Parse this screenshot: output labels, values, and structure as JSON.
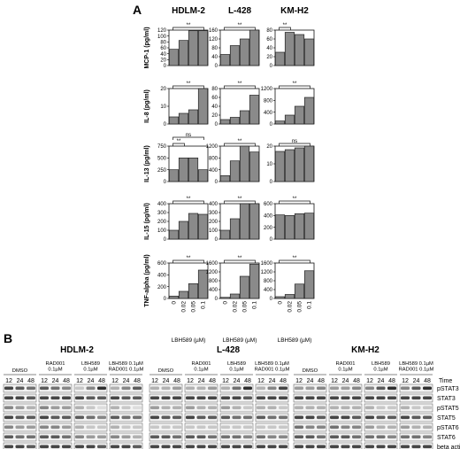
{
  "panel_a": {
    "label": "A",
    "cell_lines": [
      "HDLM-2",
      "L-428",
      "KM-H2"
    ],
    "x_label": "LBH589 (µM)",
    "doses": [
      "0",
      "0.02",
      "0.05",
      "0.1"
    ],
    "sig": "**",
    "ns": "ns"
  },
  "chart_data": [
    {
      "type": "bar",
      "cell_line": "HDLM-2",
      "ylabel": "MCP-1 (pg/ml)",
      "categories": [
        "0",
        "0.02",
        "0.05",
        "0.1"
      ],
      "values": [
        55,
        85,
        118,
        118
      ],
      "ylim": [
        0,
        120
      ],
      "yticks": [
        "0",
        "20",
        "40",
        "60",
        "80",
        "100",
        "120"
      ],
      "brackets": [
        {
          "label": "**",
          "from": 0,
          "to": 3
        }
      ]
    },
    {
      "type": "bar",
      "cell_line": "L-428",
      "ylabel": "",
      "categories": [
        "0",
        "0.02",
        "0.05",
        "0.1"
      ],
      "values": [
        50,
        90,
        120,
        160
      ],
      "ylim": [
        0,
        160
      ],
      "yticks": [
        "0",
        "40",
        "80",
        "120",
        "160"
      ],
      "brackets": [
        {
          "label": "**",
          "from": 0,
          "to": 3
        }
      ]
    },
    {
      "type": "bar",
      "cell_line": "KM-H2",
      "ylabel": "",
      "categories": [
        "0",
        "0.02",
        "0.05",
        "0.1"
      ],
      "values": [
        30,
        75,
        70,
        60
      ],
      "ylim": [
        0,
        80
      ],
      "yticks": [
        "0",
        "20",
        "40",
        "60",
        "80"
      ],
      "brackets": [
        {
          "label": "**",
          "from": 0,
          "to": 1
        }
      ]
    },
    {
      "type": "bar",
      "cell_line": "HDLM-2",
      "ylabel": "IL-8 (pg/ml)",
      "categories": [
        "0",
        "0.02",
        "0.05",
        "0.1"
      ],
      "values": [
        4,
        6,
        8,
        20
      ],
      "ylim": [
        0,
        20
      ],
      "yticks": [
        "0",
        "10",
        "20"
      ],
      "brackets": [
        {
          "label": "**",
          "from": 0,
          "to": 3
        }
      ]
    },
    {
      "type": "bar",
      "cell_line": "L-428",
      "ylabel": "",
      "categories": [
        "0",
        "0.02",
        "0.05",
        "0.1"
      ],
      "values": [
        10,
        15,
        30,
        65
      ],
      "ylim": [
        0,
        80
      ],
      "yticks": [
        "0",
        "20",
        "40",
        "60",
        "80"
      ],
      "brackets": [
        {
          "label": "**",
          "from": 0,
          "to": 3
        }
      ]
    },
    {
      "type": "bar",
      "cell_line": "KM-H2",
      "ylabel": "",
      "categories": [
        "0",
        "0.02",
        "0.05",
        "0.1"
      ],
      "values": [
        100,
        300,
        600,
        900
      ],
      "ylim": [
        0,
        1200
      ],
      "yticks": [
        "0",
        "400",
        "800",
        "1200"
      ],
      "brackets": [
        {
          "label": "**",
          "from": 0,
          "to": 3
        }
      ]
    },
    {
      "type": "bar",
      "cell_line": "HDLM-2",
      "ylabel": "IL-13 (pg/ml)",
      "categories": [
        "0",
        "0.02",
        "0.05",
        "0.1"
      ],
      "values": [
        250,
        500,
        500,
        250
      ],
      "ylim": [
        0,
        750
      ],
      "yticks": [
        "0",
        "250",
        "500",
        "750"
      ],
      "brackets": [
        {
          "label": "ns",
          "from": 0,
          "to": 3
        },
        {
          "label": "**",
          "from": 0,
          "to": 1
        }
      ]
    },
    {
      "type": "bar",
      "cell_line": "L-428",
      "ylabel": "",
      "categories": [
        "0",
        "0.02",
        "0.05",
        "0.1"
      ],
      "values": [
        200,
        700,
        1200,
        1000
      ],
      "ylim": [
        0,
        1200
      ],
      "yticks": [
        "0",
        "400",
        "800",
        "1200"
      ],
      "brackets": [
        {
          "label": "**",
          "from": 0,
          "to": 3
        }
      ]
    },
    {
      "type": "bar",
      "cell_line": "KM-H2",
      "ylabel": "",
      "categories": [
        "0",
        "0.02",
        "0.05",
        "0.1"
      ],
      "values": [
        17,
        18,
        19,
        20
      ],
      "ylim": [
        0,
        20
      ],
      "yticks": [
        "0",
        "10",
        "20"
      ],
      "brackets": [
        {
          "label": "ns",
          "from": 0,
          "to": 3
        }
      ]
    },
    {
      "type": "bar",
      "cell_line": "HDLM-2",
      "ylabel": "IL-15 (pg/ml)",
      "categories": [
        "0",
        "0.02",
        "0.05",
        "0.1"
      ],
      "values": [
        100,
        200,
        290,
        280
      ],
      "ylim": [
        0,
        400
      ],
      "yticks": [
        "0",
        "100",
        "200",
        "300",
        "400"
      ],
      "brackets": [
        {
          "label": "**",
          "from": 0,
          "to": 3
        }
      ]
    },
    {
      "type": "bar",
      "cell_line": "L-428",
      "ylabel": "",
      "categories": [
        "0",
        "0.02",
        "0.05",
        "0.1"
      ],
      "values": [
        100,
        230,
        400,
        400
      ],
      "ylim": [
        0,
        400
      ],
      "yticks": [
        "0",
        "100",
        "200",
        "300",
        "400"
      ],
      "brackets": [
        {
          "label": "**",
          "from": 0,
          "to": 3
        }
      ]
    },
    {
      "type": "bar",
      "cell_line": "KM-H2",
      "ylabel": "",
      "categories": [
        "0",
        "0.02",
        "0.05",
        "0.1"
      ],
      "values": [
        410,
        400,
        430,
        440
      ],
      "ylim": [
        0,
        600
      ],
      "yticks": [
        "0",
        "200",
        "400",
        "600"
      ],
      "brackets": [
        {
          "label": "**",
          "from": 0,
          "to": 3
        }
      ]
    },
    {
      "type": "bar",
      "cell_line": "HDLM-2",
      "ylabel": "TNF-alpha (pg/ml)",
      "categories": [
        "0",
        "0.02",
        "0.05",
        "0.1"
      ],
      "values": [
        40,
        120,
        250,
        480
      ],
      "ylim": [
        0,
        600
      ],
      "yticks": [
        "0",
        "200",
        "400",
        "600"
      ],
      "brackets": [
        {
          "label": "**",
          "from": 0,
          "to": 3
        }
      ]
    },
    {
      "type": "bar",
      "cell_line": "L-428",
      "ylabel": "",
      "categories": [
        "0",
        "0.02",
        "0.05",
        "0.1"
      ],
      "values": [
        50,
        200,
        1000,
        1550
      ],
      "ylim": [
        0,
        1600
      ],
      "yticks": [
        "0",
        "400",
        "800",
        "1200",
        "1600"
      ],
      "brackets": [
        {
          "label": "**",
          "from": 0,
          "to": 3
        }
      ]
    },
    {
      "type": "bar",
      "cell_line": "KM-H2",
      "ylabel": "",
      "categories": [
        "0",
        "0.02",
        "0.05",
        "0.1"
      ],
      "values": [
        80,
        180,
        650,
        1250
      ],
      "ylim": [
        0,
        1600
      ],
      "yticks": [
        "0",
        "400",
        "800",
        "1200",
        "1600"
      ],
      "brackets": [
        {
          "label": "**",
          "from": 0,
          "to": 3
        }
      ]
    }
  ],
  "panel_b": {
    "label": "B",
    "cell_lines": [
      "HDLM-2",
      "L-428",
      "KM-H2"
    ],
    "conditions": [
      [
        "DMSO"
      ],
      [
        "RAD001",
        "0.1µM"
      ],
      [
        "LBH589",
        "0.1µM"
      ],
      [
        "LBH589 0.1µM",
        "RAD001 0.1µM"
      ]
    ],
    "times": [
      "12",
      "24",
      "48"
    ],
    "time_label": "Time",
    "proteins": [
      "pSTAT3",
      "STAT3",
      "pSTAT5",
      "STAT5",
      "pSTAT6",
      "STAT6",
      "beta actin"
    ],
    "band_intensity": {
      "HDLM-2": [
        [
          [
            0.8,
            0.7,
            0.6
          ],
          [
            0.7,
            0.6,
            0.5
          ],
          [
            0.2,
            0.5,
            0.9
          ],
          [
            0.3,
            0.5,
            0.7
          ]
        ],
        [
          [
            0.8,
            0.8,
            0.7
          ],
          [
            0.8,
            0.8,
            0.8
          ],
          [
            0.8,
            0.7,
            0.7
          ],
          [
            0.8,
            0.7,
            0.7
          ]
        ],
        [
          [
            0.5,
            0.4,
            0.3
          ],
          [
            0.5,
            0.4,
            0.4
          ],
          [
            0.3,
            0.2,
            0.1
          ],
          [
            0.3,
            0.2,
            0.1
          ]
        ],
        [
          [
            0.8,
            0.7,
            0.7
          ],
          [
            0.8,
            0.7,
            0.7
          ],
          [
            0.7,
            0.6,
            0.5
          ],
          [
            0.7,
            0.6,
            0.6
          ]
        ],
        [
          [
            0.5,
            0.4,
            0.4
          ],
          [
            0.5,
            0.5,
            0.4
          ],
          [
            0.3,
            0.2,
            0.2
          ],
          [
            0.3,
            0.2,
            0.2
          ]
        ],
        [
          [
            0.7,
            0.6,
            0.6
          ],
          [
            0.7,
            0.7,
            0.6
          ],
          [
            0.5,
            0.4,
            0.4
          ],
          [
            0.5,
            0.4,
            0.3
          ]
        ],
        [
          [
            0.8,
            0.8,
            0.7
          ],
          [
            0.8,
            0.8,
            0.8
          ],
          [
            0.8,
            0.8,
            0.7
          ],
          [
            0.8,
            0.8,
            0.7
          ]
        ]
      ],
      "L-428": [
        [
          [
            0.3,
            0.3,
            0.4
          ],
          [
            0.3,
            0.3,
            0.4
          ],
          [
            0.3,
            0.6,
            0.9
          ],
          [
            0.3,
            0.5,
            0.8
          ]
        ],
        [
          [
            0.8,
            0.8,
            0.8
          ],
          [
            0.8,
            0.8,
            0.8
          ],
          [
            0.8,
            0.8,
            0.7
          ],
          [
            0.8,
            0.8,
            0.8
          ]
        ],
        [
          [
            0.4,
            0.3,
            0.3
          ],
          [
            0.4,
            0.3,
            0.3
          ],
          [
            0.4,
            0.3,
            0.2
          ],
          [
            0.3,
            0.3,
            0.2
          ]
        ],
        [
          [
            0.8,
            0.7,
            0.7
          ],
          [
            0.8,
            0.7,
            0.7
          ],
          [
            0.7,
            0.6,
            0.6
          ],
          [
            0.7,
            0.6,
            0.6
          ]
        ],
        [
          [
            0.2,
            0.2,
            0.2
          ],
          [
            0.2,
            0.2,
            0.2
          ],
          [
            0.2,
            0.2,
            0.2
          ],
          [
            0.2,
            0.2,
            0.2
          ]
        ],
        [
          [
            0.7,
            0.7,
            0.6
          ],
          [
            0.7,
            0.7,
            0.6
          ],
          [
            0.6,
            0.6,
            0.5
          ],
          [
            0.6,
            0.5,
            0.5
          ]
        ],
        [
          [
            0.8,
            0.8,
            0.8
          ],
          [
            0.8,
            0.8,
            0.8
          ],
          [
            0.8,
            0.8,
            0.8
          ],
          [
            0.8,
            0.8,
            0.8
          ]
        ]
      ],
      "KM-H2": [
        [
          [
            0.4,
            0.4,
            0.5
          ],
          [
            0.4,
            0.4,
            0.5
          ],
          [
            0.5,
            0.7,
            0.9
          ],
          [
            0.5,
            0.7,
            0.9
          ]
        ],
        [
          [
            0.8,
            0.8,
            0.8
          ],
          [
            0.8,
            0.8,
            0.8
          ],
          [
            0.8,
            0.8,
            0.8
          ],
          [
            0.8,
            0.8,
            0.8
          ]
        ],
        [
          [
            0.3,
            0.3,
            0.3
          ],
          [
            0.3,
            0.3,
            0.3
          ],
          [
            0.3,
            0.2,
            0.2
          ],
          [
            0.3,
            0.2,
            0.2
          ]
        ],
        [
          [
            0.8,
            0.8,
            0.7
          ],
          [
            0.8,
            0.8,
            0.7
          ],
          [
            0.8,
            0.7,
            0.7
          ],
          [
            0.8,
            0.7,
            0.7
          ]
        ],
        [
          [
            0.6,
            0.5,
            0.5
          ],
          [
            0.6,
            0.5,
            0.5
          ],
          [
            0.4,
            0.3,
            0.3
          ],
          [
            0.4,
            0.3,
            0.3
          ]
        ],
        [
          [
            0.7,
            0.7,
            0.6
          ],
          [
            0.7,
            0.7,
            0.6
          ],
          [
            0.6,
            0.6,
            0.5
          ],
          [
            0.6,
            0.6,
            0.5
          ]
        ],
        [
          [
            0.8,
            0.8,
            0.8
          ],
          [
            0.8,
            0.8,
            0.8
          ],
          [
            0.8,
            0.8,
            0.8
          ],
          [
            0.8,
            0.8,
            0.8
          ]
        ]
      ]
    }
  },
  "colors": {
    "bar": "#8a8a8a",
    "bar_stroke": "#222222",
    "axis": "#111111",
    "blot_bg": "#f3f3f3",
    "band": "#1a1a1a"
  }
}
